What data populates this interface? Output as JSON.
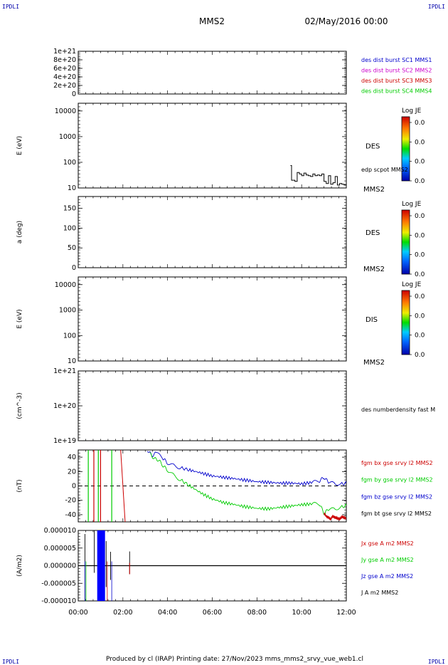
{
  "header": {
    "corner_left": "IPDLI",
    "corner_right": "IPDLI",
    "spacecraft": "MMS2",
    "datetime": "02/May/2016 00:00"
  },
  "footer": {
    "text": "Produced by cl (IRAP)   Printing date: 27/Nov/2023   mms_mms2_srvy_vue_web1.cl",
    "corner_left": "IPDLI",
    "corner_right": "IPDLI"
  },
  "colors": {
    "black": "#000000",
    "blue": "#0000cc",
    "magenta": "#cc00cc",
    "red": "#cc0000",
    "green": "#00cc00",
    "text_blue": "#0000aa"
  },
  "chart_data": [
    {
      "type": "line",
      "panel": "distribution",
      "ylabel": "",
      "y_ticks": [
        "1e+21",
        "8e+20",
        "6e+20",
        "4e+20",
        "2e+20",
        "0"
      ],
      "ylim": [
        0,
        1e+21
      ],
      "reference_line": 0,
      "legend": [
        {
          "label": "des dist burst SC1 MMS1",
          "color": "#0000cc"
        },
        {
          "label": "des dist burst SC2 MMS2",
          "color": "#cc00cc"
        },
        {
          "label": "des dist burst SC3 MMS3",
          "color": "#cc0000"
        },
        {
          "label": "des dist burst SC4 MMS4",
          "color": "#00cc00"
        }
      ]
    },
    {
      "type": "heatmap",
      "panel": "des_energy",
      "ylabel": "E (eV)",
      "y_scale": "log",
      "ylim": [
        10,
        20000
      ],
      "y_ticks": [
        "10000",
        "1000",
        "100",
        "10"
      ],
      "side_label": "DES",
      "side_sublabel": "MMS2",
      "colorbar": {
        "title": "Log JE",
        "ticks": [
          "0.0",
          "0.0",
          "0.0",
          "0.0"
        ]
      },
      "overlay": {
        "label": "edp scpot MMS2",
        "x_hours": [
          9.5,
          9.55,
          9.6,
          9.7,
          9.8,
          9.9,
          10.0,
          10.1,
          10.2,
          10.3,
          10.4,
          10.5,
          10.6,
          10.7,
          10.8,
          10.9,
          11.0,
          11.1,
          11.2,
          11.3,
          11.4,
          11.5,
          11.6,
          11.7,
          11.8,
          11.9,
          12.0
        ],
        "values": [
          75,
          20,
          20,
          18,
          40,
          35,
          30,
          38,
          32,
          30,
          28,
          35,
          30,
          32,
          30,
          35,
          18,
          15,
          30,
          14,
          16,
          28,
          13,
          15,
          14,
          13,
          14
        ]
      }
    },
    {
      "type": "heatmap",
      "panel": "des_pitch",
      "ylabel": "a (deg)",
      "ylim": [
        0,
        180
      ],
      "y_ticks": [
        "150",
        "100",
        "50",
        "0"
      ],
      "side_label": "DES",
      "side_sublabel": "MMS2",
      "colorbar": {
        "title": "Log JE",
        "ticks": [
          "0.0",
          "0.0",
          "0.0",
          "0.0"
        ]
      }
    },
    {
      "type": "heatmap",
      "panel": "dis_energy",
      "ylabel": "E (eV)",
      "y_scale": "log",
      "ylim": [
        10,
        20000
      ],
      "y_ticks": [
        "10000",
        "1000",
        "100",
        "10"
      ],
      "side_label": "DIS",
      "side_sublabel": "MMS2",
      "colorbar": {
        "title": "Log JE",
        "ticks": [
          "0.0",
          "0.0",
          "0.0",
          "0.0"
        ]
      }
    },
    {
      "type": "line",
      "panel": "density",
      "ylabel": "(cm^-3)",
      "y_scale": "log",
      "ylim": [
        1e+19,
        1e+21
      ],
      "y_ticks": [
        "1e+21",
        "1e+20",
        "1e+19"
      ],
      "legend": [
        {
          "label": "des numberdensity fast M",
          "color": "#000000"
        }
      ]
    },
    {
      "type": "line",
      "panel": "magnetic_field",
      "ylabel": "(nT)",
      "ylim": [
        -50,
        50
      ],
      "y_ticks": [
        "40",
        "20",
        "0",
        "-20",
        "-40"
      ],
      "reference_line": 0,
      "legend": [
        {
          "label": "fgm bx gse srvy l2 MMS2",
          "color": "#cc0000"
        },
        {
          "label": "fgm by gse srvy l2 MMS2",
          "color": "#00cc00"
        },
        {
          "label": "fgm bz gse srvy l2 MMS2",
          "color": "#0000cc"
        },
        {
          "label": "fgm bt gse srvy l2 MMS2",
          "color": "#000000"
        }
      ],
      "series": [
        {
          "name": "fgm bz gse srvy l2 MMS2",
          "color": "#0000cc",
          "x_hours": [
            3.1,
            3.3,
            3.5,
            3.8,
            4.0,
            4.3,
            4.6,
            5.0,
            5.5,
            6.0,
            6.5,
            7.0,
            7.5,
            8.0,
            8.5,
            9.0,
            9.5,
            10.0,
            10.5,
            10.8,
            11.0,
            11.2,
            11.5,
            11.8,
            12.0
          ],
          "values": [
            50,
            42,
            46,
            38,
            32,
            28,
            25,
            22,
            18,
            14,
            12,
            10,
            8,
            6,
            5,
            4,
            4,
            3,
            5,
            7,
            12,
            5,
            3,
            3,
            4
          ]
        },
        {
          "name": "fgm by gse srvy l2 MMS2",
          "color": "#00cc00",
          "x_hours": [
            3.2,
            3.4,
            3.6,
            3.8,
            4.0,
            4.3,
            4.6,
            5.0,
            5.5,
            6.0,
            6.5,
            7.0,
            7.5,
            8.0,
            8.5,
            9.0,
            9.5,
            10.0,
            10.5,
            10.8,
            11.0,
            11.2,
            11.5,
            11.8,
            12.0
          ],
          "values": [
            45,
            38,
            36,
            28,
            22,
            14,
            8,
            0,
            -10,
            -18,
            -23,
            -26,
            -29,
            -31,
            -32,
            -30,
            -28,
            -26,
            -25,
            -25,
            -38,
            -33,
            -32,
            -29,
            -27
          ]
        },
        {
          "name": "fgm bx gse srvy l2 MMS2",
          "color": "#cc0000",
          "x_hours": [
            11.0,
            11.1,
            11.2,
            11.3,
            11.4,
            11.5,
            11.6,
            11.7,
            11.8,
            11.9,
            12.0
          ],
          "values": [
            -38,
            -42,
            -44,
            -46,
            -42,
            -44,
            -45,
            -46,
            -43,
            -44,
            -45
          ]
        }
      ]
    },
    {
      "type": "line",
      "panel": "current_density",
      "ylabel": "(A/m2)",
      "ylim": [
        -1e-05,
        1e-05
      ],
      "y_ticks": [
        "0.000010",
        "0.000005",
        "0.000000",
        "-0.000005",
        "-0.000010"
      ],
      "legend": [
        {
          "label": "Jx gse A m2 MMS2",
          "color": "#cc0000"
        },
        {
          "label": "Jy gse A m2 MMS2",
          "color": "#00cc00"
        },
        {
          "label": "Jz gse A m2 MMS2",
          "color": "#0000cc"
        },
        {
          "label": "J A m2 MMS2",
          "color": "#000000"
        }
      ],
      "x_ticks": [
        "00:00",
        "02:00",
        "04:00",
        "06:00",
        "08:00",
        "10:00",
        "12:00"
      ],
      "xlim_hours": [
        0,
        12
      ]
    }
  ]
}
